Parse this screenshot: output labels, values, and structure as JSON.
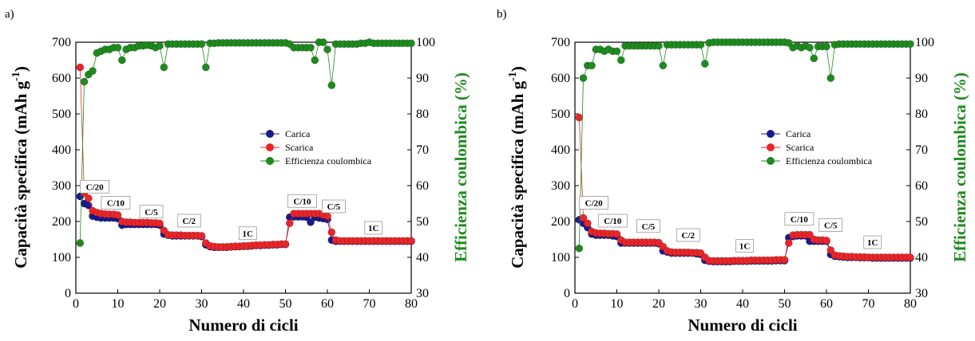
{
  "chart_data": [
    {
      "type": "scatter",
      "panel_label": "a)",
      "xlabel": "Numero di cicli",
      "ylabel": "Capacità specifica (mAh g",
      "ylabel_sup": "-1",
      "ylabel_end": ")",
      "ylabel_right": "Efficienza coulombica (%)",
      "xlim": [
        0,
        80
      ],
      "ylim": [
        0,
        700
      ],
      "ylim_right": [
        30,
        100
      ],
      "xticks": [
        0,
        10,
        20,
        30,
        40,
        50,
        60,
        70,
        80
      ],
      "yticks": [
        0,
        100,
        200,
        300,
        400,
        500,
        600,
        700
      ],
      "yticks_right": [
        30,
        40,
        50,
        60,
        70,
        80,
        90,
        100
      ],
      "legend": [
        "Carica",
        "Scarica",
        "Efficienza coulombica"
      ],
      "colors": {
        "carica": "#1a1a8c",
        "scarica": "#e8262a",
        "efficienza": "#1f8a1f"
      },
      "rate_labels": [
        {
          "text": "C/20",
          "x": 4.5,
          "y": 295
        },
        {
          "text": "C/10",
          "x": 9.5,
          "y": 250
        },
        {
          "text": "C/5",
          "x": 18,
          "y": 225
        },
        {
          "text": "C/2",
          "x": 27,
          "y": 200
        },
        {
          "text": "1C",
          "x": 41,
          "y": 165
        },
        {
          "text": "C/10",
          "x": 54,
          "y": 255
        },
        {
          "text": "C/5",
          "x": 61.5,
          "y": 240
        },
        {
          "text": "1C",
          "x": 71,
          "y": 180
        }
      ],
      "series": [
        {
          "name": "Carica",
          "x": [
            1,
            2,
            3,
            4,
            5,
            6,
            7,
            8,
            9,
            10,
            11,
            12,
            13,
            14,
            15,
            16,
            17,
            18,
            19,
            20,
            21,
            22,
            23,
            24,
            25,
            26,
            27,
            28,
            29,
            30,
            31,
            32,
            33,
            34,
            35,
            36,
            37,
            38,
            39,
            40,
            41,
            42,
            43,
            44,
            45,
            46,
            47,
            48,
            49,
            50,
            51,
            52,
            53,
            54,
            55,
            56,
            57,
            58,
            59,
            60,
            61,
            62,
            63,
            64,
            65,
            66,
            67,
            68,
            69,
            70,
            71,
            72,
            73,
            74,
            75,
            76,
            77,
            78,
            79,
            80
          ],
          "values": [
            270,
            250,
            245,
            215,
            212,
            210,
            210,
            210,
            210,
            208,
            190,
            192,
            192,
            192,
            192,
            192,
            192,
            192,
            192,
            190,
            165,
            162,
            160,
            160,
            160,
            160,
            160,
            160,
            160,
            158,
            135,
            130,
            128,
            128,
            128,
            128,
            129,
            130,
            130,
            131,
            131,
            132,
            133,
            133,
            134,
            134,
            135,
            135,
            136,
            136,
            212,
            213,
            213,
            213,
            212,
            198,
            212,
            210,
            208,
            206,
            148,
            145,
            145,
            145,
            145,
            145,
            145,
            145,
            145,
            145,
            145,
            145,
            145,
            145,
            145,
            145,
            145,
            145,
            145,
            145
          ]
        },
        {
          "name": "Scarica",
          "x": [
            1,
            2,
            3,
            4,
            5,
            6,
            7,
            8,
            9,
            10,
            11,
            12,
            13,
            14,
            15,
            16,
            17,
            18,
            19,
            20,
            21,
            22,
            23,
            24,
            25,
            26,
            27,
            28,
            29,
            30,
            31,
            32,
            33,
            34,
            35,
            36,
            37,
            38,
            39,
            40,
            41,
            42,
            43,
            44,
            45,
            46,
            47,
            48,
            49,
            50,
            51,
            52,
            53,
            54,
            55,
            56,
            57,
            58,
            59,
            60,
            61,
            62,
            63,
            64,
            65,
            66,
            67,
            68,
            69,
            70,
            71,
            72,
            73,
            74,
            75,
            76,
            77,
            78,
            79,
            80
          ],
          "values": [
            630,
            280,
            265,
            230,
            225,
            222,
            221,
            220,
            220,
            218,
            200,
            198,
            198,
            197,
            197,
            197,
            197,
            196,
            196,
            195,
            175,
            163,
            162,
            162,
            162,
            161,
            161,
            161,
            161,
            160,
            140,
            132,
            130,
            129,
            129,
            129,
            130,
            131,
            131,
            132,
            132,
            133,
            134,
            134,
            135,
            135,
            136,
            136,
            137,
            137,
            195,
            222,
            222,
            222,
            222,
            222,
            222,
            222,
            218,
            215,
            170,
            148,
            146,
            146,
            146,
            146,
            146,
            146,
            146,
            146,
            146,
            146,
            146,
            146,
            146,
            146,
            146,
            146,
            146,
            146
          ]
        },
        {
          "name": "Efficienza coulombica",
          "x": [
            1,
            2,
            3,
            4,
            5,
            6,
            7,
            8,
            9,
            10,
            11,
            12,
            13,
            14,
            15,
            16,
            17,
            18,
            19,
            20,
            21,
            22,
            23,
            24,
            25,
            26,
            27,
            28,
            29,
            30,
            31,
            32,
            33,
            34,
            35,
            36,
            37,
            38,
            39,
            40,
            41,
            42,
            43,
            44,
            45,
            46,
            47,
            48,
            49,
            50,
            51,
            52,
            53,
            54,
            55,
            56,
            57,
            58,
            59,
            60,
            61,
            62,
            63,
            64,
            65,
            66,
            67,
            68,
            69,
            70,
            71,
            72,
            73,
            74,
            75,
            76,
            77,
            78,
            79,
            80
          ],
          "values": [
            44,
            89,
            91,
            92,
            97,
            97.5,
            98,
            98,
            98.5,
            98.5,
            95,
            98,
            98.5,
            98.5,
            99,
            99,
            99.2,
            99,
            98.5,
            99,
            93,
            99.5,
            99.5,
            99.5,
            99.5,
            99.5,
            99.5,
            99.5,
            99.5,
            99.5,
            93,
            99.7,
            99.7,
            99.8,
            99.8,
            99.8,
            99.8,
            99.8,
            99.8,
            99.8,
            99.8,
            99.8,
            99.8,
            99.8,
            99.8,
            99.8,
            99.8,
            99.8,
            99.8,
            99.8,
            99.5,
            98.5,
            98.5,
            98.5,
            98.5,
            98.5,
            95,
            100,
            100,
            98,
            88,
            99.5,
            99.5,
            99.5,
            99.5,
            99.5,
            99.5,
            99.7,
            99.7,
            100,
            99.7,
            99.7,
            99.7,
            99.7,
            99.7,
            99.7,
            99.7,
            99.7,
            99.7,
            99.7
          ]
        }
      ]
    },
    {
      "type": "scatter",
      "panel_label": "b)",
      "xlabel": "Numero di cicli",
      "ylabel": "Capacità specifica (mAh g",
      "ylabel_sup": "-1",
      "ylabel_end": ")",
      "ylabel_right": "Efficienza coulombica (%)",
      "xlim": [
        0,
        80
      ],
      "ylim": [
        0,
        700
      ],
      "ylim_right": [
        30,
        100
      ],
      "xticks": [
        0,
        10,
        20,
        30,
        40,
        50,
        60,
        70,
        80
      ],
      "yticks": [
        0,
        100,
        200,
        300,
        400,
        500,
        600,
        700
      ],
      "yticks_right": [
        30,
        40,
        50,
        60,
        70,
        80,
        90,
        100
      ],
      "legend": [
        "Carica",
        "Scarica",
        "Efficienza coulombica"
      ],
      "colors": {
        "carica": "#1a1a8c",
        "scarica": "#e8262a",
        "efficienza": "#1f8a1f"
      },
      "rate_labels": [
        {
          "text": "C/20",
          "x": 4.5,
          "y": 250
        },
        {
          "text": "C/10",
          "x": 9,
          "y": 200
        },
        {
          "text": "C/5",
          "x": 17.5,
          "y": 185
        },
        {
          "text": "C/2",
          "x": 27,
          "y": 160
        },
        {
          "text": "1C",
          "x": 40.5,
          "y": 130
        },
        {
          "text": "C/10",
          "x": 53.5,
          "y": 205
        },
        {
          "text": "C/5",
          "x": 61,
          "y": 188
        },
        {
          "text": "1C",
          "x": 71,
          "y": 140
        }
      ],
      "series": [
        {
          "name": "Carica",
          "x": [
            1,
            2,
            3,
            4,
            5,
            6,
            7,
            8,
            9,
            10,
            11,
            12,
            13,
            14,
            15,
            16,
            17,
            18,
            19,
            20,
            21,
            22,
            23,
            24,
            25,
            26,
            27,
            28,
            29,
            30,
            31,
            32,
            33,
            34,
            35,
            36,
            37,
            38,
            39,
            40,
            41,
            42,
            43,
            44,
            45,
            46,
            47,
            48,
            49,
            50,
            51,
            52,
            53,
            54,
            55,
            56,
            57,
            58,
            59,
            60,
            61,
            62,
            63,
            64,
            65,
            66,
            67,
            68,
            69,
            70,
            71,
            72,
            73,
            74,
            75,
            76,
            77,
            78,
            79,
            80
          ],
          "values": [
            205,
            195,
            183,
            165,
            162,
            162,
            162,
            162,
            160,
            158,
            140,
            140,
            140,
            140,
            140,
            140,
            140,
            140,
            140,
            138,
            118,
            115,
            112,
            112,
            112,
            112,
            112,
            112,
            110,
            108,
            92,
            89,
            88,
            88,
            88,
            88,
            88,
            89,
            89,
            89,
            89,
            90,
            90,
            90,
            90,
            90,
            90,
            91,
            91,
            91,
            155,
            158,
            160,
            160,
            160,
            145,
            145,
            145,
            145,
            145,
            108,
            103,
            102,
            101,
            100,
            100,
            100,
            99,
            99,
            99,
            98,
            98,
            98,
            98,
            98,
            98,
            98,
            98,
            98,
            98
          ]
        },
        {
          "name": "Scarica",
          "x": [
            1,
            2,
            3,
            4,
            5,
            6,
            7,
            8,
            9,
            10,
            11,
            12,
            13,
            14,
            15,
            16,
            17,
            18,
            19,
            20,
            21,
            22,
            23,
            24,
            25,
            26,
            27,
            28,
            29,
            30,
            31,
            32,
            33,
            34,
            35,
            36,
            37,
            38,
            39,
            40,
            41,
            42,
            43,
            44,
            45,
            46,
            47,
            48,
            49,
            50,
            51,
            52,
            53,
            54,
            55,
            56,
            57,
            58,
            59,
            60,
            61,
            62,
            63,
            64,
            65,
            66,
            67,
            68,
            69,
            70,
            71,
            72,
            73,
            74,
            75,
            76,
            77,
            78,
            79,
            80
          ],
          "values": [
            490,
            210,
            195,
            172,
            168,
            167,
            167,
            166,
            166,
            165,
            148,
            142,
            142,
            142,
            142,
            142,
            142,
            142,
            142,
            141,
            130,
            118,
            115,
            114,
            114,
            114,
            114,
            113,
            113,
            112,
            100,
            91,
            90,
            90,
            90,
            90,
            90,
            91,
            91,
            91,
            91,
            92,
            92,
            92,
            92,
            92,
            92,
            93,
            93,
            93,
            140,
            162,
            163,
            163,
            163,
            163,
            150,
            148,
            148,
            147,
            120,
            106,
            104,
            103,
            102,
            102,
            101,
            101,
            101,
            100,
            100,
            100,
            100,
            100,
            100,
            100,
            100,
            100,
            100,
            100
          ]
        },
        {
          "name": "Efficienza coulombica",
          "x": [
            1,
            2,
            3,
            4,
            5,
            6,
            7,
            8,
            9,
            10,
            11,
            12,
            13,
            14,
            15,
            16,
            17,
            18,
            19,
            20,
            21,
            22,
            23,
            24,
            25,
            26,
            27,
            28,
            29,
            30,
            31,
            32,
            33,
            34,
            35,
            36,
            37,
            38,
            39,
            40,
            41,
            42,
            43,
            44,
            45,
            46,
            47,
            48,
            49,
            50,
            51,
            52,
            53,
            54,
            55,
            56,
            57,
            58,
            59,
            60,
            61,
            62,
            63,
            64,
            65,
            66,
            67,
            68,
            69,
            70,
            71,
            72,
            73,
            74,
            75,
            76,
            77,
            78,
            79,
            80
          ],
          "values": [
            42.5,
            90,
            93.5,
            93.5,
            98,
            98,
            97.5,
            98,
            97.5,
            97.5,
            95,
            99,
            99,
            99,
            99,
            99,
            99,
            99,
            99,
            99,
            93.5,
            99.3,
            99.3,
            99.3,
            99.3,
            99.3,
            99.3,
            99.3,
            99.3,
            99.3,
            94,
            99.8,
            100,
            100,
            100,
            100,
            100,
            100,
            100,
            100,
            100,
            100,
            100,
            100,
            100,
            100,
            100,
            100,
            100,
            100,
            99.8,
            98.5,
            99,
            98.5,
            99,
            98.5,
            95.5,
            98.8,
            98.8,
            98.8,
            90,
            99.3,
            99.5,
            99.5,
            99.5,
            99.5,
            99.5,
            99.5,
            99.5,
            99.5,
            99.5,
            99.5,
            99.5,
            99.5,
            99.5,
            99.5,
            99.5,
            99.5,
            99.5,
            99.5
          ]
        }
      ]
    }
  ]
}
